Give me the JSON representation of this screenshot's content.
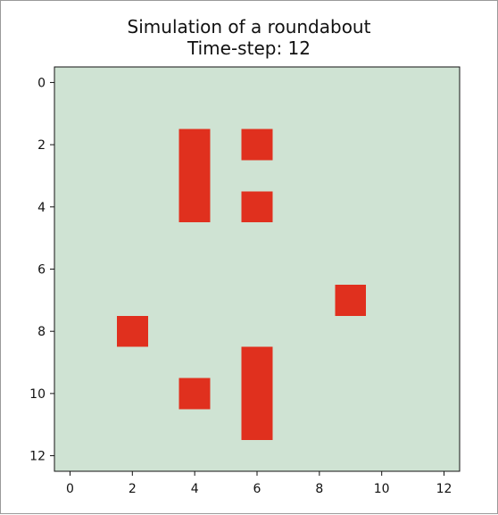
{
  "chart_data": {
    "type": "heatmap",
    "title": "Simulation of a roundabout",
    "subtitle": "Time-step: 12",
    "xlabel": "",
    "ylabel": "",
    "xlim": [
      -0.5,
      12.5
    ],
    "ylim": [
      12.5,
      -0.5
    ],
    "y_inverted": true,
    "grid": false,
    "x_ticks": [
      0,
      2,
      4,
      6,
      8,
      10,
      12
    ],
    "y_ticks": [
      0,
      2,
      4,
      6,
      8,
      10,
      12
    ],
    "grid_size": [
      13,
      13
    ],
    "background_color": "#cfe3d3",
    "occupied_color": "#e0301e",
    "occupied_cells": [
      {
        "row": 2,
        "col": 4
      },
      {
        "row": 3,
        "col": 4
      },
      {
        "row": 4,
        "col": 4
      },
      {
        "row": 2,
        "col": 6
      },
      {
        "row": 4,
        "col": 6
      },
      {
        "row": 7,
        "col": 9
      },
      {
        "row": 8,
        "col": 2
      },
      {
        "row": 10,
        "col": 4
      },
      {
        "row": 9,
        "col": 6
      },
      {
        "row": 10,
        "col": 6
      },
      {
        "row": 11,
        "col": 6
      }
    ]
  }
}
